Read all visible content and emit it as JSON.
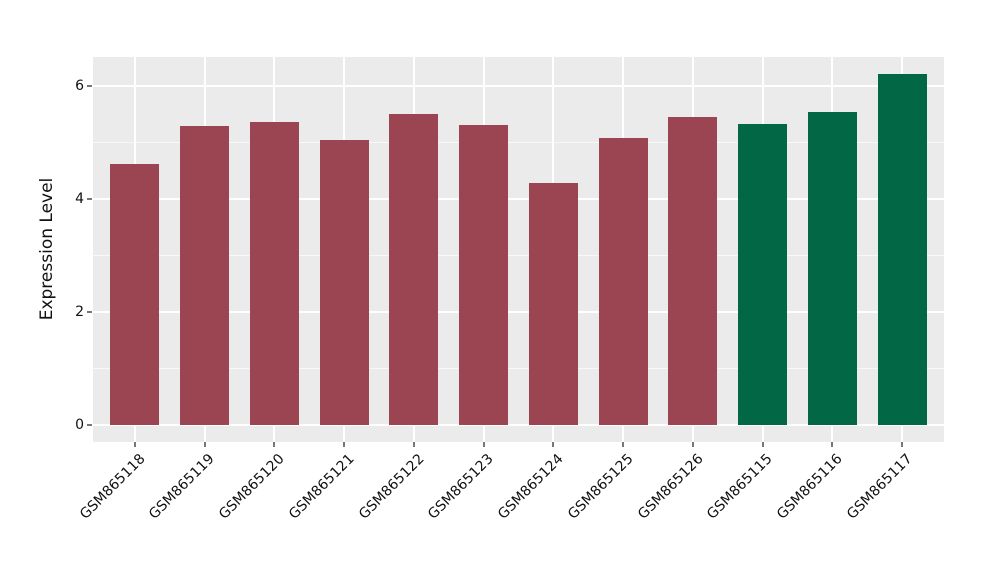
{
  "chart_data": {
    "type": "bar",
    "title": "",
    "xlabel": "",
    "ylabel": "Expression Level",
    "categories": [
      "GSM865118",
      "GSM865119",
      "GSM865120",
      "GSM865121",
      "GSM865122",
      "GSM865123",
      "GSM865124",
      "GSM865125",
      "GSM865126",
      "GSM865115",
      "GSM865116",
      "GSM865117"
    ],
    "values": [
      4.63,
      5.3,
      5.36,
      5.04,
      5.5,
      5.31,
      4.28,
      5.08,
      5.46,
      5.34,
      5.55,
      6.21
    ],
    "bar_colors": [
      "#9B4452",
      "#9B4452",
      "#9B4452",
      "#9B4452",
      "#9B4452",
      "#9B4452",
      "#9B4452",
      "#9B4452",
      "#9B4452",
      "#026745",
      "#026745",
      "#026745"
    ],
    "group_colors": {
      "maroon": "#9B4452",
      "green": "#026745"
    },
    "y_ticks": [
      0,
      2,
      4,
      6
    ],
    "y_minor_ticks": [
      1,
      3,
      5
    ],
    "ylim": [
      -0.31,
      6.52
    ],
    "bar_width_fraction": 0.7,
    "x_pad_units": 0.6,
    "panel_bg": "#EBEBEB",
    "grid_color": "#FFFFFF",
    "grid": "horizontal major+minor, vertical major at category centers",
    "legend": "none"
  }
}
